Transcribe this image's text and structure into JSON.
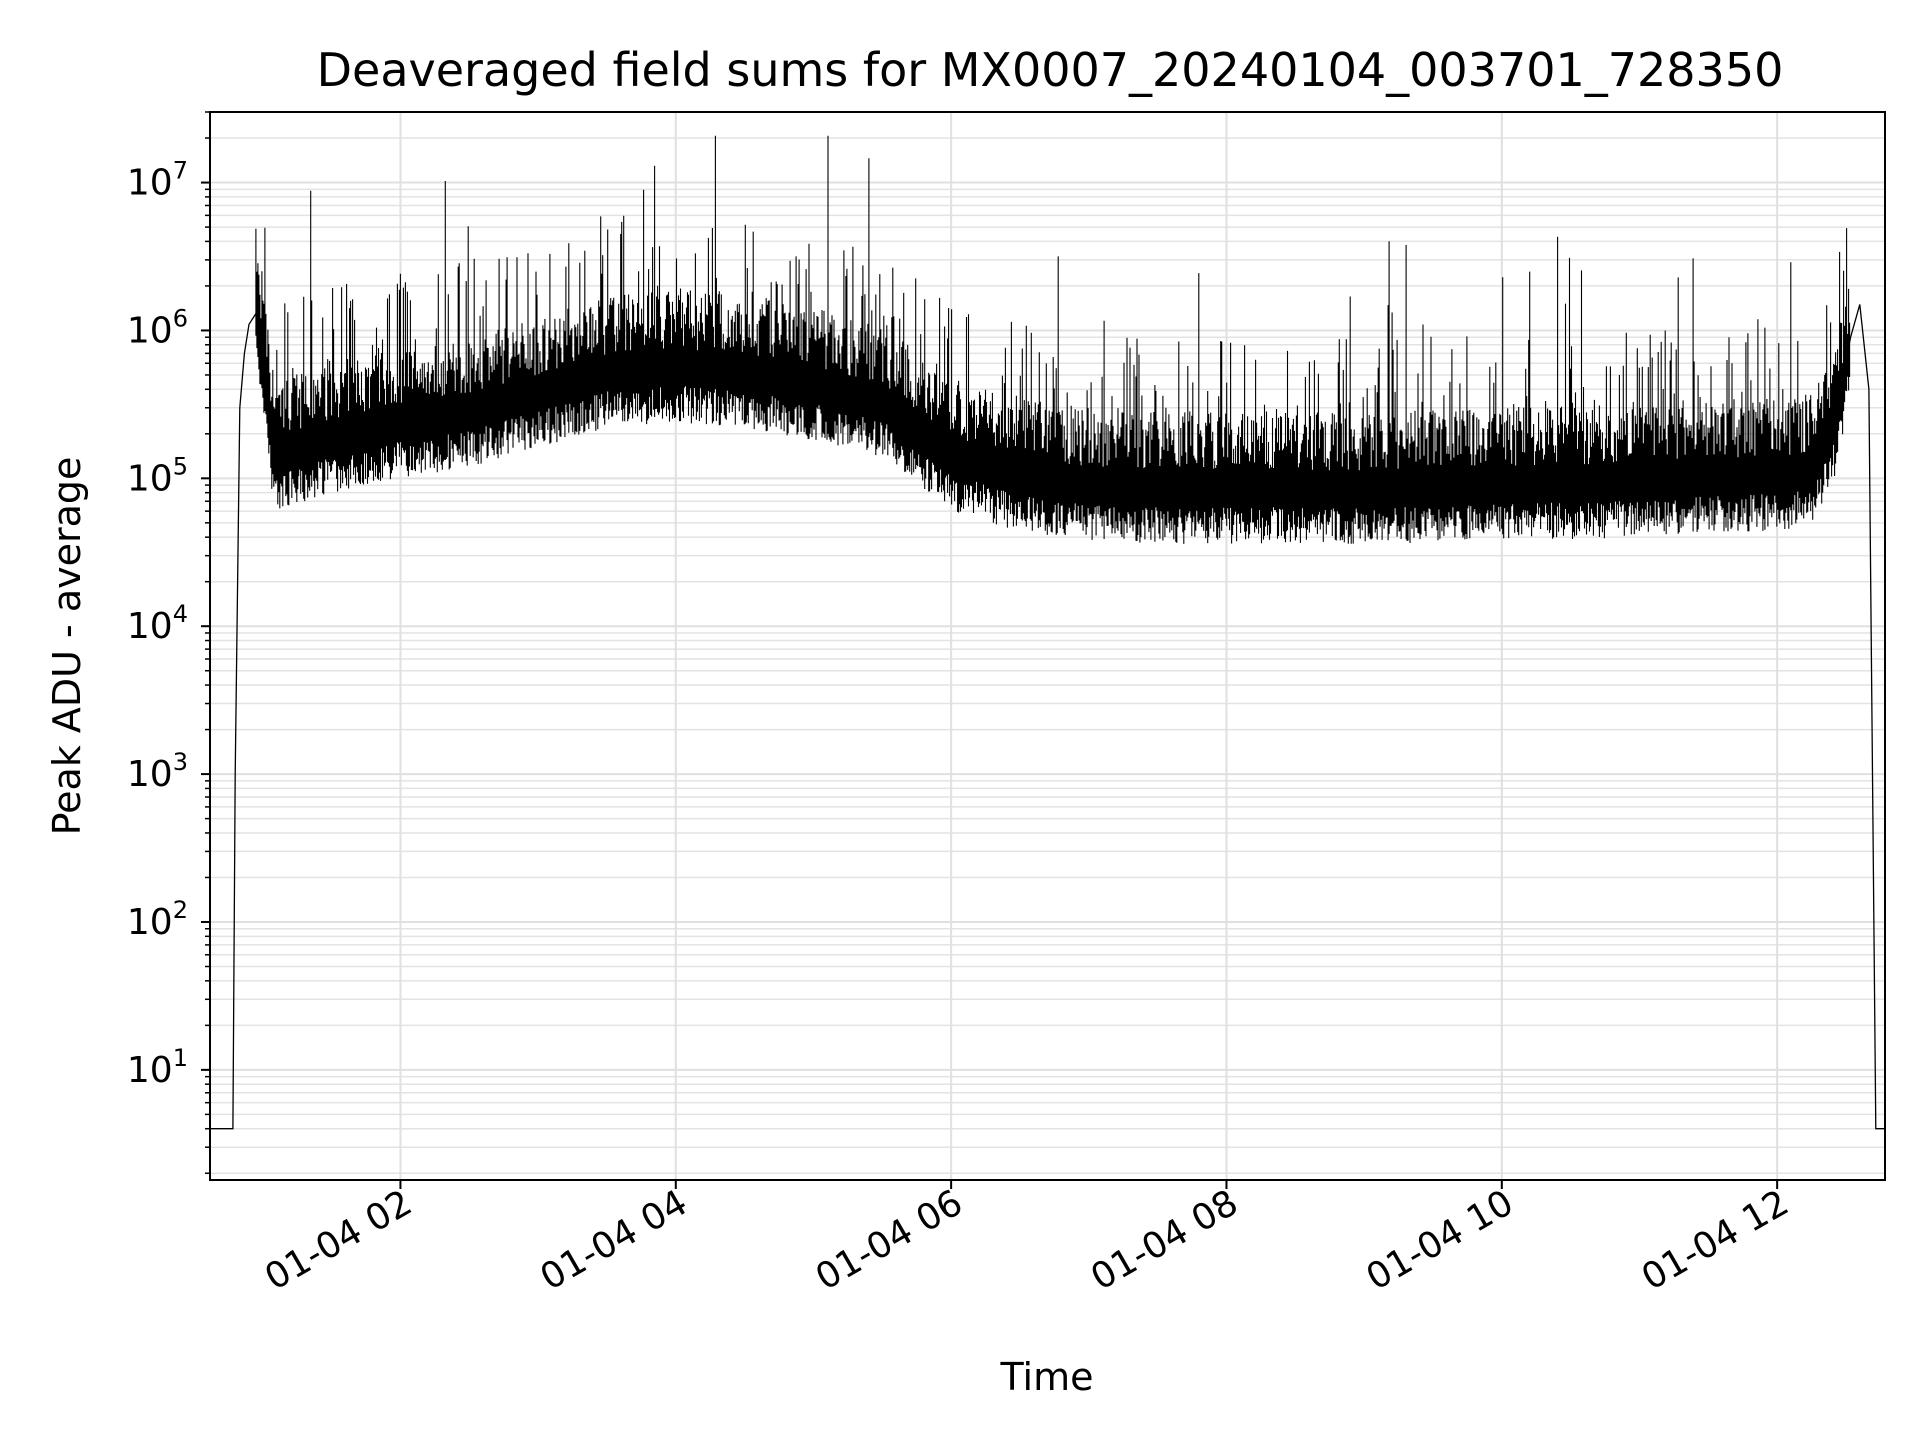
{
  "chart_data": {
    "type": "line",
    "title": "Deaveraged field sums for MX0007_20240104_003701_728350",
    "xlabel": "Time",
    "ylabel": "Peak ADU - average",
    "yscale": "log",
    "ylim": [
      1.8,
      30000000
    ],
    "xlim": [
      "2024-01-04 00:37",
      "2024-01-04 12:47"
    ],
    "grid": true,
    "legend": "none",
    "line_color": "#000000",
    "x_ticks": [
      "01-04 02",
      "01-04 04",
      "01-04 06",
      "01-04 08",
      "01-04 10",
      "01-04 12"
    ],
    "y_ticks": [
      {
        "base": "10",
        "exp": "1"
      },
      {
        "base": "10",
        "exp": "2"
      },
      {
        "base": "10",
        "exp": "3"
      },
      {
        "base": "10",
        "exp": "4"
      },
      {
        "base": "10",
        "exp": "5"
      },
      {
        "base": "10",
        "exp": "6"
      },
      {
        "base": "10",
        "exp": "7"
      }
    ],
    "series": [
      {
        "x": [
          "2024-01-04 00:37",
          "2024-01-04 00:47",
          "2024-01-04 00:48",
          "2024-01-04 00:50",
          "2024-01-04 00:52",
          "2024-01-04 00:54",
          "2024-01-04 00:57",
          "2024-01-04 01:00",
          "2024-01-04 01:03",
          "2024-01-04 01:05",
          "2024-01-04 01:08",
          "2024-01-04 01:30",
          "2024-01-04 02:00",
          "2024-01-04 02:30",
          "2024-01-04 03:00",
          "2024-01-04 03:30",
          "2024-01-04 04:00",
          "2024-01-04 04:30",
          "2024-01-04 05:00",
          "2024-01-04 05:30",
          "2024-01-04 06:00",
          "2024-01-04 06:30",
          "2024-01-04 07:00",
          "2024-01-04 07:30",
          "2024-01-04 08:00",
          "2024-01-04 09:00",
          "2024-01-04 10:00",
          "2024-01-04 11:00",
          "2024-01-04 11:30",
          "2024-01-04 12:00",
          "2024-01-04 12:15",
          "2024-01-04 12:25",
          "2024-01-04 12:32",
          "2024-01-04 12:36",
          "2024-01-04 12:40",
          "2024-01-04 12:43",
          "2024-01-04 12:47"
        ],
        "values": [
          4,
          4,
          1000,
          300000,
          700000,
          1100000,
          1300000,
          800000,
          250000,
          160000,
          150000,
          200000,
          250000,
          300000,
          400000,
          550000,
          600000,
          550000,
          450000,
          350000,
          150000,
          110000,
          95000,
          90000,
          90000,
          90000,
          95000,
          100000,
          110000,
          110000,
          120000,
          250000,
          900000,
          1500000,
          400000,
          4,
          4
        ]
      }
    ]
  }
}
